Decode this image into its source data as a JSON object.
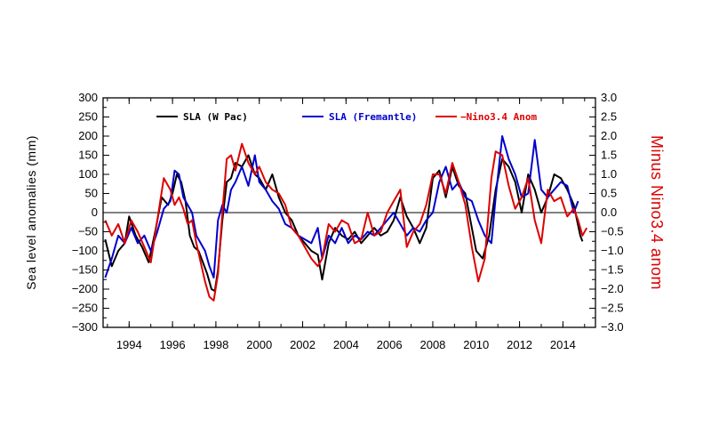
{
  "chart_data": {
    "type": "line",
    "title": "",
    "xlabel": "",
    "ylabel": "Sea level anomalies (mm)",
    "ylabel_right": "Minus Nino3.4 anom",
    "xlim": [
      1992.8,
      2015.5
    ],
    "ylim": [
      -300,
      300
    ],
    "ylim_right": [
      -3.0,
      3.0
    ],
    "x_ticks": [
      1994,
      1996,
      1998,
      2000,
      2002,
      2004,
      2006,
      2008,
      2010,
      2012,
      2014
    ],
    "x_tick_labels": [
      "1994",
      "1996",
      "1998",
      "2000",
      "2002",
      "2004",
      "2006",
      "2008",
      "2010",
      "2012",
      "2014"
    ],
    "y_ticks": [
      300,
      250,
      200,
      150,
      100,
      50,
      0,
      -50,
      -100,
      -150,
      -200,
      -250,
      -300
    ],
    "y_tick_labels": [
      "300",
      "250",
      "200",
      "150",
      "100",
      "50",
      "0",
      "−50",
      "−100",
      "−150",
      "−200",
      "−250",
      "−300"
    ],
    "y2_ticks": [
      3.0,
      2.5,
      2.0,
      1.5,
      1.0,
      0.5,
      0.0,
      -0.5,
      -1.0,
      -1.5,
      -2.0,
      -2.5,
      -3.0
    ],
    "y2_tick_labels": [
      "3.0",
      "2.5",
      "2.0",
      "1.5",
      "1.0",
      "0.5",
      "0.0",
      "−0.5",
      "−1.0",
      "−1.5",
      "−2.0",
      "−2.5",
      "−3.0"
    ],
    "zero_line": true,
    "legend_position": "top",
    "series": [
      {
        "name": "SLA (W Pac)",
        "color": "#000000",
        "axis": "left",
        "x": [
          1992.9,
          1993.2,
          1993.5,
          1993.8,
          1994.0,
          1994.3,
          1994.6,
          1994.9,
          1995.2,
          1995.5,
          1995.8,
          1996.0,
          1996.2,
          1996.4,
          1996.6,
          1996.8,
          1997.0,
          1997.2,
          1997.4,
          1997.6,
          1997.8,
          1997.95,
          1998.1,
          1998.3,
          1998.5,
          1998.7,
          1998.9,
          1999.2,
          1999.5,
          1999.8,
          2000.0,
          2000.3,
          2000.6,
          2000.9,
          2001.2,
          2001.5,
          2001.8,
          2002.1,
          2002.4,
          2002.7,
          2002.9,
          2003.2,
          2003.5,
          2003.8,
          2004.1,
          2004.4,
          2004.7,
          2005.0,
          2005.3,
          2005.6,
          2005.9,
          2006.2,
          2006.5,
          2006.8,
          2007.1,
          2007.4,
          2007.7,
          2008.0,
          2008.3,
          2008.6,
          2008.9,
          2009.2,
          2009.5,
          2009.8,
          2010.0,
          2010.3,
          2010.6,
          2010.9,
          2011.2,
          2011.5,
          2011.8,
          2012.1,
          2012.4,
          2012.7,
          2013.0,
          2013.3,
          2013.6,
          2013.9,
          2014.2,
          2014.5,
          2014.8,
          2014.9
        ],
        "values": [
          -70,
          -140,
          -100,
          -80,
          -10,
          -60,
          -90,
          -130,
          -50,
          40,
          20,
          50,
          100,
          80,
          30,
          -60,
          -90,
          -100,
          -130,
          -160,
          -200,
          -205,
          -150,
          -20,
          80,
          90,
          130,
          120,
          150,
          100,
          90,
          60,
          100,
          40,
          0,
          -20,
          -60,
          -80,
          -100,
          -110,
          -175,
          -80,
          -40,
          -60,
          -70,
          -50,
          -80,
          -60,
          -40,
          -60,
          -50,
          -20,
          40,
          -10,
          -40,
          -80,
          -40,
          90,
          110,
          40,
          120,
          70,
          50,
          -40,
          -100,
          -120,
          -60,
          60,
          140,
          120,
          80,
          0,
          100,
          60,
          0,
          40,
          100,
          90,
          60,
          20,
          -60,
          -75
        ]
      },
      {
        "name": "SLA (Fremantle)",
        "color": "#0000cc",
        "axis": "left",
        "x": [
          1992.9,
          1993.2,
          1993.5,
          1993.8,
          1994.1,
          1994.4,
          1994.7,
          1995.0,
          1995.3,
          1995.6,
          1995.9,
          1996.1,
          1996.3,
          1996.5,
          1996.7,
          1996.9,
          1997.1,
          1997.3,
          1997.5,
          1997.7,
          1997.9,
          1998.1,
          1998.3,
          1998.5,
          1998.7,
          1998.9,
          1999.2,
          1999.5,
          1999.8,
          2000.0,
          2000.3,
          2000.6,
          2000.9,
          2001.2,
          2001.5,
          2001.8,
          2002.1,
          2002.4,
          2002.7,
          2002.9,
          2003.2,
          2003.5,
          2003.8,
          2004.1,
          2004.4,
          2004.7,
          2005.0,
          2005.3,
          2005.6,
          2005.9,
          2006.2,
          2006.5,
          2006.8,
          2007.1,
          2007.4,
          2007.7,
          2008.0,
          2008.3,
          2008.6,
          2008.9,
          2009.2,
          2009.5,
          2009.8,
          2010.1,
          2010.4,
          2010.7,
          2010.9,
          2011.2,
          2011.5,
          2011.8,
          2012.1,
          2012.4,
          2012.7,
          2013.0,
          2013.3,
          2013.6,
          2013.9,
          2014.2,
          2014.5,
          2014.7
        ],
        "values": [
          -170,
          -120,
          -60,
          -80,
          -40,
          -80,
          -60,
          -100,
          -50,
          10,
          30,
          110,
          100,
          40,
          20,
          0,
          -60,
          -80,
          -100,
          -140,
          -170,
          -20,
          20,
          0,
          60,
          80,
          120,
          70,
          150,
          80,
          60,
          30,
          10,
          -30,
          -40,
          -60,
          -70,
          -80,
          -40,
          -120,
          -60,
          -80,
          -40,
          -80,
          -60,
          -70,
          -50,
          -60,
          -40,
          -20,
          0,
          -30,
          -60,
          -40,
          -50,
          -20,
          0,
          80,
          120,
          60,
          80,
          40,
          30,
          -20,
          -60,
          -80,
          40,
          200,
          140,
          100,
          40,
          50,
          190,
          60,
          40,
          60,
          80,
          70,
          0,
          30
        ],
        "values_note": "series ends near 2014.7 at ~30 mm"
      },
      {
        "name": "−Nino3.4 Anom",
        "color": "#dd0000",
        "axis": "right",
        "x": [
          1992.9,
          1993.2,
          1993.5,
          1993.8,
          1994.1,
          1994.4,
          1994.7,
          1995.0,
          1995.3,
          1995.6,
          1995.9,
          1996.1,
          1996.3,
          1996.5,
          1996.7,
          1996.9,
          1997.1,
          1997.3,
          1997.5,
          1997.7,
          1997.9,
          1998.1,
          1998.3,
          1998.5,
          1998.7,
          1998.9,
          1999.2,
          1999.5,
          1999.8,
          2000.0,
          2000.3,
          2000.6,
          2000.9,
          2001.2,
          2001.5,
          2001.8,
          2002.1,
          2002.4,
          2002.7,
          2002.9,
          2003.2,
          2003.5,
          2003.8,
          2004.1,
          2004.4,
          2004.7,
          2005.0,
          2005.3,
          2005.6,
          2005.9,
          2006.2,
          2006.5,
          2006.8,
          2007.1,
          2007.4,
          2007.7,
          2008.0,
          2008.3,
          2008.6,
          2008.9,
          2009.2,
          2009.5,
          2009.8,
          2010.1,
          2010.4,
          2010.7,
          2010.9,
          2011.2,
          2011.5,
          2011.8,
          2012.1,
          2012.4,
          2012.7,
          2013.0,
          2013.3,
          2013.6,
          2013.9,
          2014.2,
          2014.5,
          2014.7,
          2014.9,
          2015.1
        ],
        "values": [
          -0.2,
          -0.6,
          -0.3,
          -0.8,
          -0.2,
          -0.5,
          -0.9,
          -1.3,
          -0.2,
          0.9,
          0.6,
          0.2,
          0.4,
          0.1,
          -0.3,
          -0.2,
          -0.8,
          -1.3,
          -1.8,
          -2.2,
          -2.3,
          -1.6,
          0.0,
          1.4,
          1.5,
          1.1,
          1.8,
          1.3,
          1.0,
          1.2,
          0.8,
          0.6,
          0.5,
          0.2,
          -0.4,
          -0.6,
          -0.9,
          -1.2,
          -1.4,
          -1.2,
          -0.3,
          -0.5,
          -0.2,
          -0.3,
          -0.8,
          -0.7,
          0.0,
          -0.6,
          -0.5,
          0.0,
          0.3,
          0.6,
          -0.9,
          -0.5,
          -0.3,
          0.2,
          1.0,
          1.0,
          0.5,
          1.3,
          0.8,
          0.2,
          -0.9,
          -1.8,
          -1.2,
          0.9,
          1.6,
          1.5,
          0.7,
          0.1,
          0.4,
          0.9,
          -0.2,
          -0.8,
          0.6,
          0.3,
          0.4,
          -0.1,
          0.1,
          -0.2,
          -0.6,
          -0.4
        ]
      }
    ]
  }
}
